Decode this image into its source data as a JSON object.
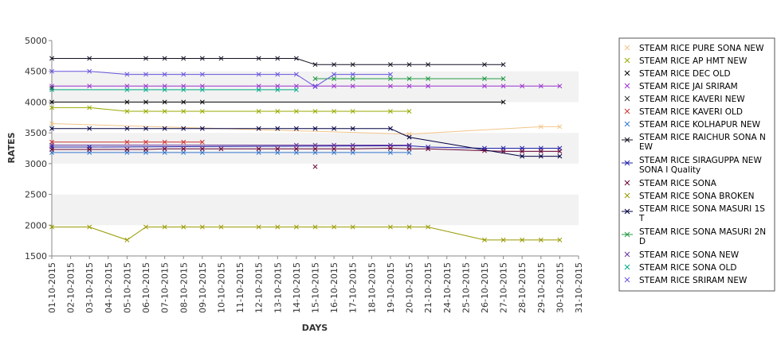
{
  "chart_data": {
    "type": "line",
    "xlabel": "DAYS",
    "ylabel": "RATES",
    "ylim": [
      1500,
      5000
    ],
    "yticks": [
      1500,
      2000,
      2500,
      3000,
      3500,
      4000,
      4500,
      5000
    ],
    "grid": "alternating horizontal bands",
    "legend_position": "right",
    "categories": [
      "01-10-2015",
      "02-10-2015",
      "03-10-2015",
      "04-10-2015",
      "05-10-2015",
      "06-10-2015",
      "07-10-2015",
      "08-10-2015",
      "09-10-2015",
      "10-10-2015",
      "11-10-2015",
      "12-10-2015",
      "13-10-2015",
      "14-10-2015",
      "15-10-2015",
      "16-10-2015",
      "17-10-2015",
      "18-10-2015",
      "19-10-2015",
      "20-10-2015",
      "21-10-2015",
      "24-10-2015",
      "25-10-2015",
      "26-10-2015",
      "27-10-2015",
      "28-10-2015",
      "29-10-2015",
      "30-10-2015",
      "31-10-2015"
    ],
    "series": [
      {
        "name": " STEAM RICE PURE SONA NEW",
        "color": "#f2c58a",
        "values": [
          3650,
          null,
          null,
          null,
          null,
          null,
          null,
          null,
          null,
          null,
          null,
          null,
          null,
          null,
          null,
          null,
          null,
          null,
          null,
          3480,
          null,
          null,
          null,
          null,
          null,
          null,
          3600,
          3600,
          null
        ]
      },
      {
        "name": "STEAM RICE AP HMT NEW",
        "color": "#99aa00",
        "values": [
          3910,
          null,
          3910,
          null,
          3850,
          3850,
          3850,
          3850,
          3850,
          null,
          null,
          3850,
          3850,
          3850,
          3850,
          3850,
          3850,
          null,
          3850,
          3850,
          null,
          null,
          null,
          null,
          null,
          null,
          null,
          null,
          null
        ]
      },
      {
        "name": "STEAM RICE DEC OLD",
        "color": "#000000",
        "values": [
          4000,
          null,
          null,
          null,
          4000,
          4000,
          4000,
          4000,
          4000,
          null,
          null,
          null,
          null,
          null,
          null,
          null,
          null,
          null,
          null,
          null,
          null,
          null,
          null,
          null,
          4000,
          null,
          null,
          null,
          null
        ]
      },
      {
        "name": "STEAM RICE JAI SRIRAM",
        "color": "#9933cc",
        "values": [
          4260,
          null,
          4260,
          null,
          4260,
          4260,
          4260,
          4260,
          4260,
          null,
          null,
          4260,
          4260,
          4260,
          4260,
          4260,
          4260,
          null,
          4260,
          4260,
          4260,
          null,
          null,
          4260,
          4260,
          4260,
          4260,
          4260,
          null
        ]
      },
      {
        "name": "STEAM RICE KAVERI NEW",
        "color": "#333333",
        "values": [
          4230,
          null,
          null,
          null,
          null,
          null,
          null,
          null,
          null,
          null,
          null,
          null,
          null,
          null,
          null,
          null,
          null,
          null,
          null,
          null,
          null,
          null,
          null,
          null,
          null,
          null,
          null,
          null,
          null
        ]
      },
      {
        "name": "STEAM RICE KAVERI OLD",
        "color": "#cc3333",
        "values": [
          3350,
          null,
          null,
          null,
          3350,
          3350,
          3350,
          3350,
          3350,
          null,
          null,
          null,
          null,
          null,
          null,
          null,
          null,
          null,
          null,
          null,
          null,
          null,
          null,
          null,
          null,
          null,
          null,
          null,
          null
        ]
      },
      {
        "name": "STEAM RICE KOLHAPUR NEW",
        "color": "#3377cc",
        "values": [
          3180,
          null,
          3180,
          null,
          3180,
          3180,
          3180,
          3180,
          3180,
          null,
          null,
          3180,
          3180,
          3180,
          3180,
          3180,
          3180,
          null,
          3180,
          3180,
          null,
          null,
          null,
          null,
          null,
          null,
          null,
          null,
          null
        ]
      },
      {
        "name": "STEAM RICE RAICHUR SONA NEW",
        "color": "#111122",
        "values": [
          4710,
          null,
          4710,
          null,
          null,
          4710,
          4710,
          4710,
          4710,
          4710,
          null,
          4710,
          4710,
          4710,
          4610,
          4610,
          4610,
          null,
          4610,
          4610,
          4610,
          null,
          null,
          4610,
          4610,
          null,
          null,
          null,
          null
        ]
      },
      {
        "name": "STEAM RICE SIRAGUPPA NEW SONA I Quality",
        "color": "#2222aa",
        "values": [
          3270,
          null,
          3270,
          null,
          null,
          null,
          null,
          null,
          null,
          null,
          null,
          null,
          null,
          null,
          null,
          null,
          null,
          null,
          null,
          3290,
          3270,
          null,
          null,
          3250,
          3250,
          3250,
          3250,
          3250,
          null
        ]
      },
      {
        "name": "STEAM RICE SONA",
        "color": "#660033",
        "values": [
          3230,
          null,
          3230,
          null,
          3230,
          3230,
          3240,
          3240,
          3240,
          3240,
          null,
          3240,
          3240,
          3240,
          3240,
          3240,
          3240,
          null,
          3250,
          3240,
          3240,
          null,
          null,
          3210,
          3200,
          3200,
          3200,
          3200,
          null
        ]
      },
      {
        "name": "STEAM RICE SONA BROKEN",
        "color": "#999900",
        "values": [
          1970,
          null,
          1970,
          null,
          1760,
          1970,
          1970,
          1970,
          1970,
          1970,
          null,
          1970,
          1970,
          1970,
          1970,
          1970,
          1970,
          null,
          1970,
          1970,
          1970,
          null,
          null,
          1760,
          1760,
          1760,
          1760,
          1760,
          null
        ]
      },
      {
        "name": "STEAM RICE SONA MASURI 1ST",
        "color": "#000044",
        "values": [
          3570,
          null,
          3570,
          null,
          3570,
          3570,
          3570,
          3570,
          3570,
          null,
          null,
          3570,
          3570,
          3570,
          3570,
          3570,
          3570,
          null,
          3570,
          3430,
          null,
          null,
          null,
          null,
          null,
          3120,
          3120,
          3120,
          null
        ]
      },
      {
        "name": "STEAM RICE SONA MASURI 2ND",
        "color": "#229944",
        "values": [
          null,
          null,
          null,
          null,
          null,
          null,
          null,
          null,
          null,
          null,
          null,
          null,
          null,
          null,
          4380,
          4380,
          4380,
          null,
          4380,
          4380,
          4380,
          null,
          null,
          4380,
          4380,
          null,
          null,
          null,
          null
        ]
      },
      {
        "name": "STEAM RICE SONA NEW",
        "color": "#663399",
        "values": [
          3300,
          null,
          null,
          null,
          null,
          null,
          null,
          null,
          null,
          null,
          null,
          null,
          null,
          3300,
          3300,
          3300,
          3300,
          null,
          3300,
          3300,
          null,
          null,
          null,
          null,
          null,
          null,
          null,
          null,
          null
        ]
      },
      {
        "name": "STEAM RICE SONA OLD",
        "color": "#00aa88",
        "values": [
          4200,
          null,
          null,
          null,
          4200,
          4200,
          4200,
          4200,
          4200,
          null,
          null,
          4200,
          4200,
          4200,
          null,
          null,
          null,
          null,
          null,
          null,
          null,
          null,
          null,
          null,
          null,
          null,
          null,
          null,
          null
        ]
      },
      {
        "name": "STEAM RICE SRIRAM NEW",
        "color": "#6655dd",
        "values": [
          4500,
          null,
          4500,
          null,
          4450,
          4450,
          4450,
          4450,
          4450,
          null,
          null,
          4450,
          4450,
          4450,
          4250,
          4450,
          4450,
          null,
          4450,
          null,
          null,
          null,
          null,
          null,
          null,
          null,
          null,
          null,
          null
        ]
      }
    ],
    "extra_points": [
      {
        "series": "STEAM RICE SONA",
        "x": "15-10-2015",
        "y": 2950
      }
    ],
    "legend_labels": [
      " STEAM RICE PURE SONA NEW",
      "STEAM RICE AP HMT NEW",
      "STEAM RICE DEC OLD",
      "STEAM RICE JAI SRIRAM",
      "STEAM RICE KAVERI NEW",
      "STEAM RICE KAVERI OLD",
      "STEAM RICE KOLHAPUR NEW",
      [
        "STEAM RICE RAICHUR SONA N",
        "EW"
      ],
      [
        "STEAM RICE SIRAGUPPA NEW",
        "SONA I Quality"
      ],
      "STEAM RICE SONA",
      "STEAM RICE SONA BROKEN",
      [
        "STEAM RICE SONA MASURI 1S",
        "T"
      ],
      [
        "STEAM RICE SONA MASURI 2N",
        "D"
      ],
      "STEAM RICE SONA NEW",
      "STEAM RICE SONA OLD",
      "STEAM RICE SRIRAM NEW"
    ]
  }
}
